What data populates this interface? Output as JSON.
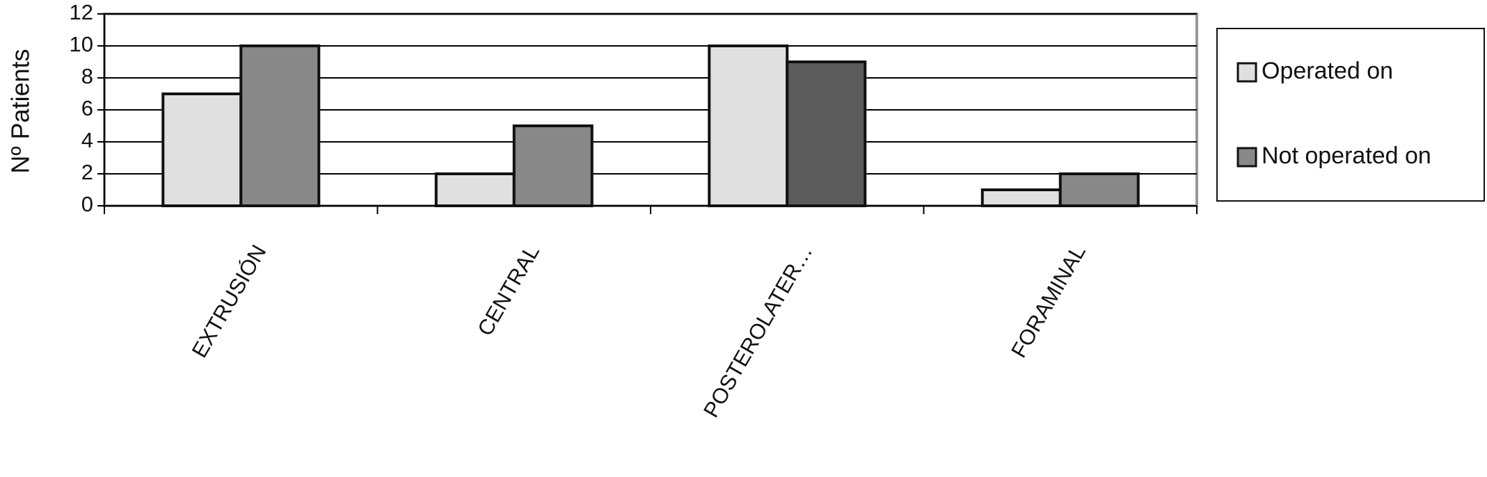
{
  "chart_data": {
    "type": "bar",
    "y_label": "Nº Patients",
    "categories": [
      "EXTRUSIÓN",
      "CENTRAL",
      "POSTEROLATER…",
      "FORAMINAL"
    ],
    "series": [
      {
        "name": "Operated on",
        "color": "#e0e0e0",
        "values": [
          7,
          2,
          10,
          1
        ]
      },
      {
        "name": "Not operated on",
        "color": "#888888",
        "colors": [
          "#888888",
          "#888888",
          "#5c5c5c",
          "#888888"
        ],
        "values": [
          10,
          5,
          9,
          2
        ]
      }
    ],
    "ylim": [
      0,
      12
    ],
    "yticks": [
      0,
      2,
      4,
      6,
      8,
      10,
      12
    ],
    "grid": true,
    "legend": "right"
  }
}
